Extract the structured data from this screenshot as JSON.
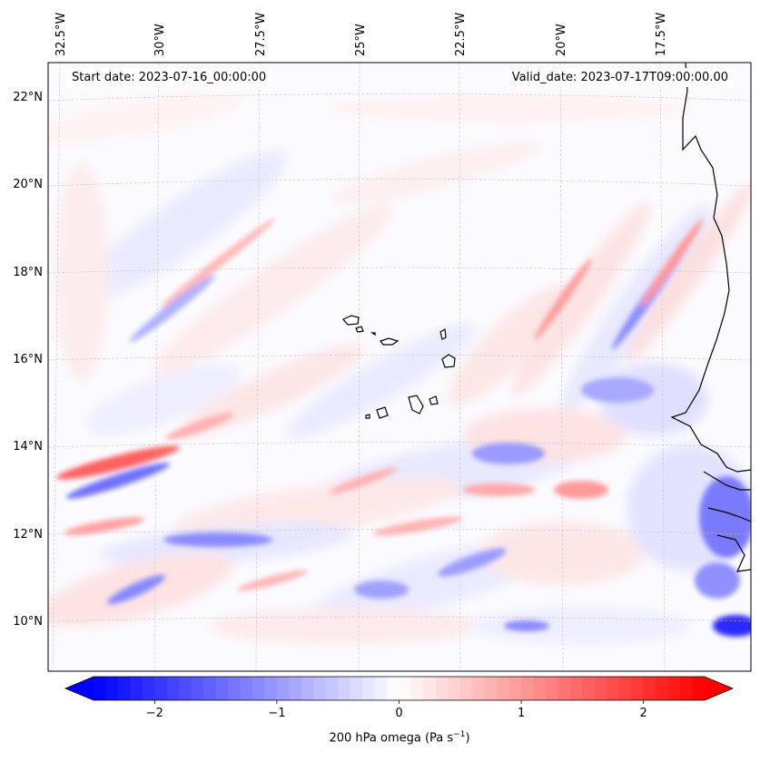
{
  "start_date": "Start date: 2023-07-16_00:00:00",
  "valid_date": "Valid_date: 2023-07-17T09:00:00.00",
  "lon_ticks": [
    "32.5°W",
    "30°W",
    "27.5°W",
    "25°W",
    "22.5°W",
    "20°W",
    "17.5°W"
  ],
  "lat_ticks": [
    "22°N",
    "20°N",
    "18°N",
    "16°N",
    "14°N",
    "12°N",
    "10°N"
  ],
  "colorbar": {
    "ticks": [
      "−2",
      "−1",
      "0",
      "1",
      "2"
    ],
    "tick_values": [
      -2,
      -1,
      0,
      1,
      2
    ],
    "range": [
      -2.5,
      2.5
    ],
    "label_main": "200 hPa omega (Pa s",
    "label_sup": "−1",
    "label_close": ")",
    "min_color": "#0000ff",
    "max_color": "#ff0000"
  },
  "colors": {
    "coast": "#000000",
    "grid": "#bbbbbb"
  }
}
